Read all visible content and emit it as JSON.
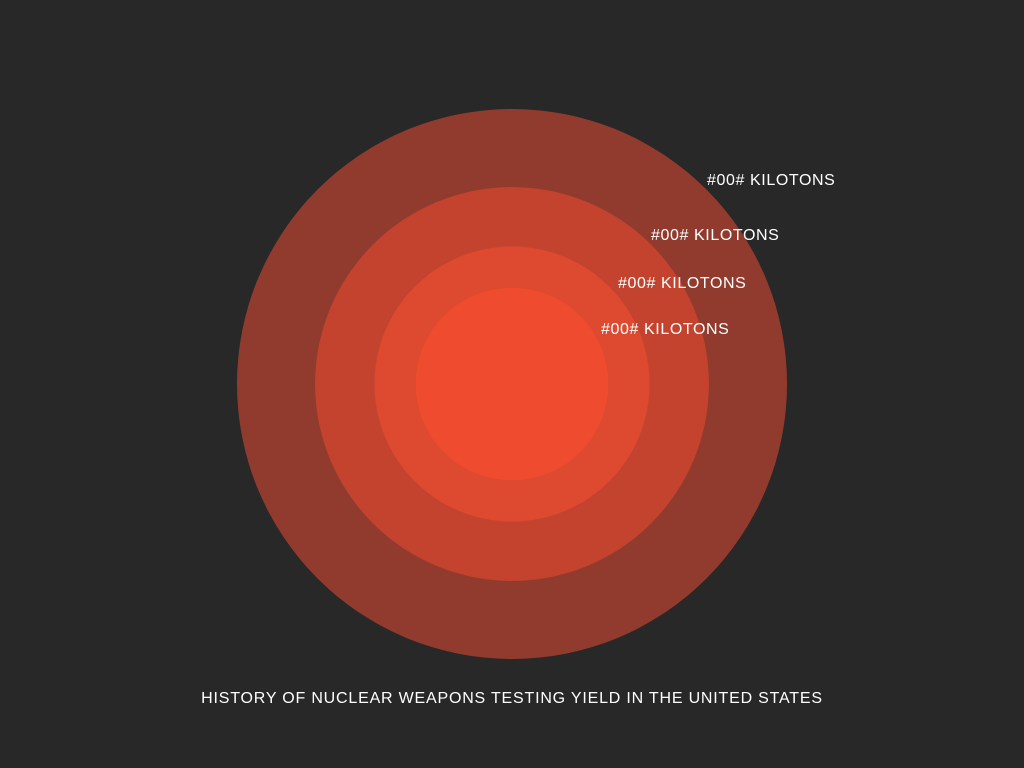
{
  "chart_data": {
    "type": "concentric-circles",
    "title": "HISTORY OF NUCLEAR WEAPONS TESTING YIELD IN THE UNITED STATES",
    "rings": [
      {
        "label": "#00# KILOTONS",
        "relative_size": 1.0,
        "color": "#913b2e"
      },
      {
        "label": "#00# KILOTONS",
        "relative_size": 0.716,
        "color": "#c4432e"
      },
      {
        "label": "#00# KILOTONS",
        "relative_size": 0.5,
        "color": "#de4a2f"
      },
      {
        "label": "#00# KILOTONS",
        "relative_size": 0.35,
        "color": "#ef4c2f"
      }
    ]
  },
  "colors": {
    "background": "#282828",
    "text": "#ffffff"
  }
}
